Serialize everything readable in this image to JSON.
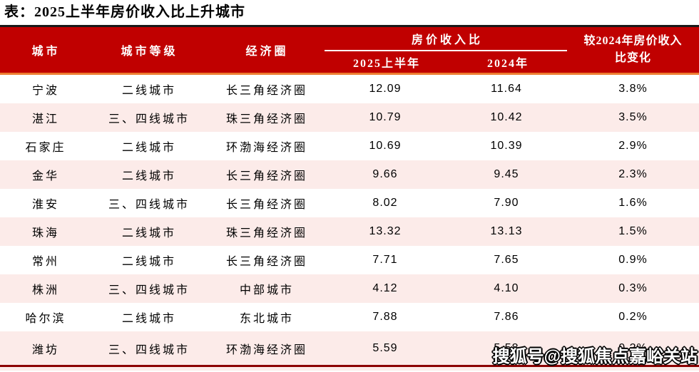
{
  "title": "表：2025上半年房价收入比上升城市",
  "watermark": "搜狐号@搜狐焦点嘉峪关站",
  "colors": {
    "header_red": "#C00000",
    "header_top_border": "#1a1a1a",
    "header_orange_underline": "#ED7D31",
    "header_text": "#FFFFFF",
    "row_pink": "#FCEBE9",
    "bottom_border_red": "#8B0000",
    "body_text": "#000000"
  },
  "table": {
    "columns": {
      "city": "城市",
      "tier": "城市等级",
      "region": "经济圈",
      "ratio_group": "房价收入比",
      "ratio_2025h1": "2025上半年",
      "ratio_2024": "2024年",
      "change_line1": "较2024年房价收入",
      "change_line2": "比变化"
    },
    "rows": [
      {
        "city": "宁波",
        "tier": "二线城市",
        "region": "长三角经济圈",
        "ratio_2025h1": "12.09",
        "ratio_2024": "11.64",
        "change": "3.8%"
      },
      {
        "city": "湛江",
        "tier": "三、四线城市",
        "region": "珠三角经济圈",
        "ratio_2025h1": "10.79",
        "ratio_2024": "10.42",
        "change": "3.5%"
      },
      {
        "city": "石家庄",
        "tier": "二线城市",
        "region": "环渤海经济圈",
        "ratio_2025h1": "10.69",
        "ratio_2024": "10.39",
        "change": "2.9%"
      },
      {
        "city": "金华",
        "tier": "二线城市",
        "region": "长三角经济圈",
        "ratio_2025h1": "9.66",
        "ratio_2024": "9.45",
        "change": "2.3%"
      },
      {
        "city": "淮安",
        "tier": "三、四线城市",
        "region": "长三角经济圈",
        "ratio_2025h1": "8.02",
        "ratio_2024": "7.90",
        "change": "1.6%"
      },
      {
        "city": "珠海",
        "tier": "二线城市",
        "region": "珠三角经济圈",
        "ratio_2025h1": "13.32",
        "ratio_2024": "13.13",
        "change": "1.5%"
      },
      {
        "city": "常州",
        "tier": "二线城市",
        "region": "长三角经济圈",
        "ratio_2025h1": "7.71",
        "ratio_2024": "7.65",
        "change": "0.9%"
      },
      {
        "city": "株洲",
        "tier": "三、四线城市",
        "region": "中部城市",
        "ratio_2025h1": "4.12",
        "ratio_2024": "4.10",
        "change": "0.3%"
      },
      {
        "city": "哈尔滨",
        "tier": "二线城市",
        "region": "东北城市",
        "ratio_2025h1": "7.88",
        "ratio_2024": "7.86",
        "change": "0.2%"
      },
      {
        "city": "潍坊",
        "tier": "三、四线城市",
        "region": "环渤海经济圈",
        "ratio_2025h1": "5.59",
        "ratio_2024": "5.58",
        "change": "0.2%"
      }
    ]
  }
}
